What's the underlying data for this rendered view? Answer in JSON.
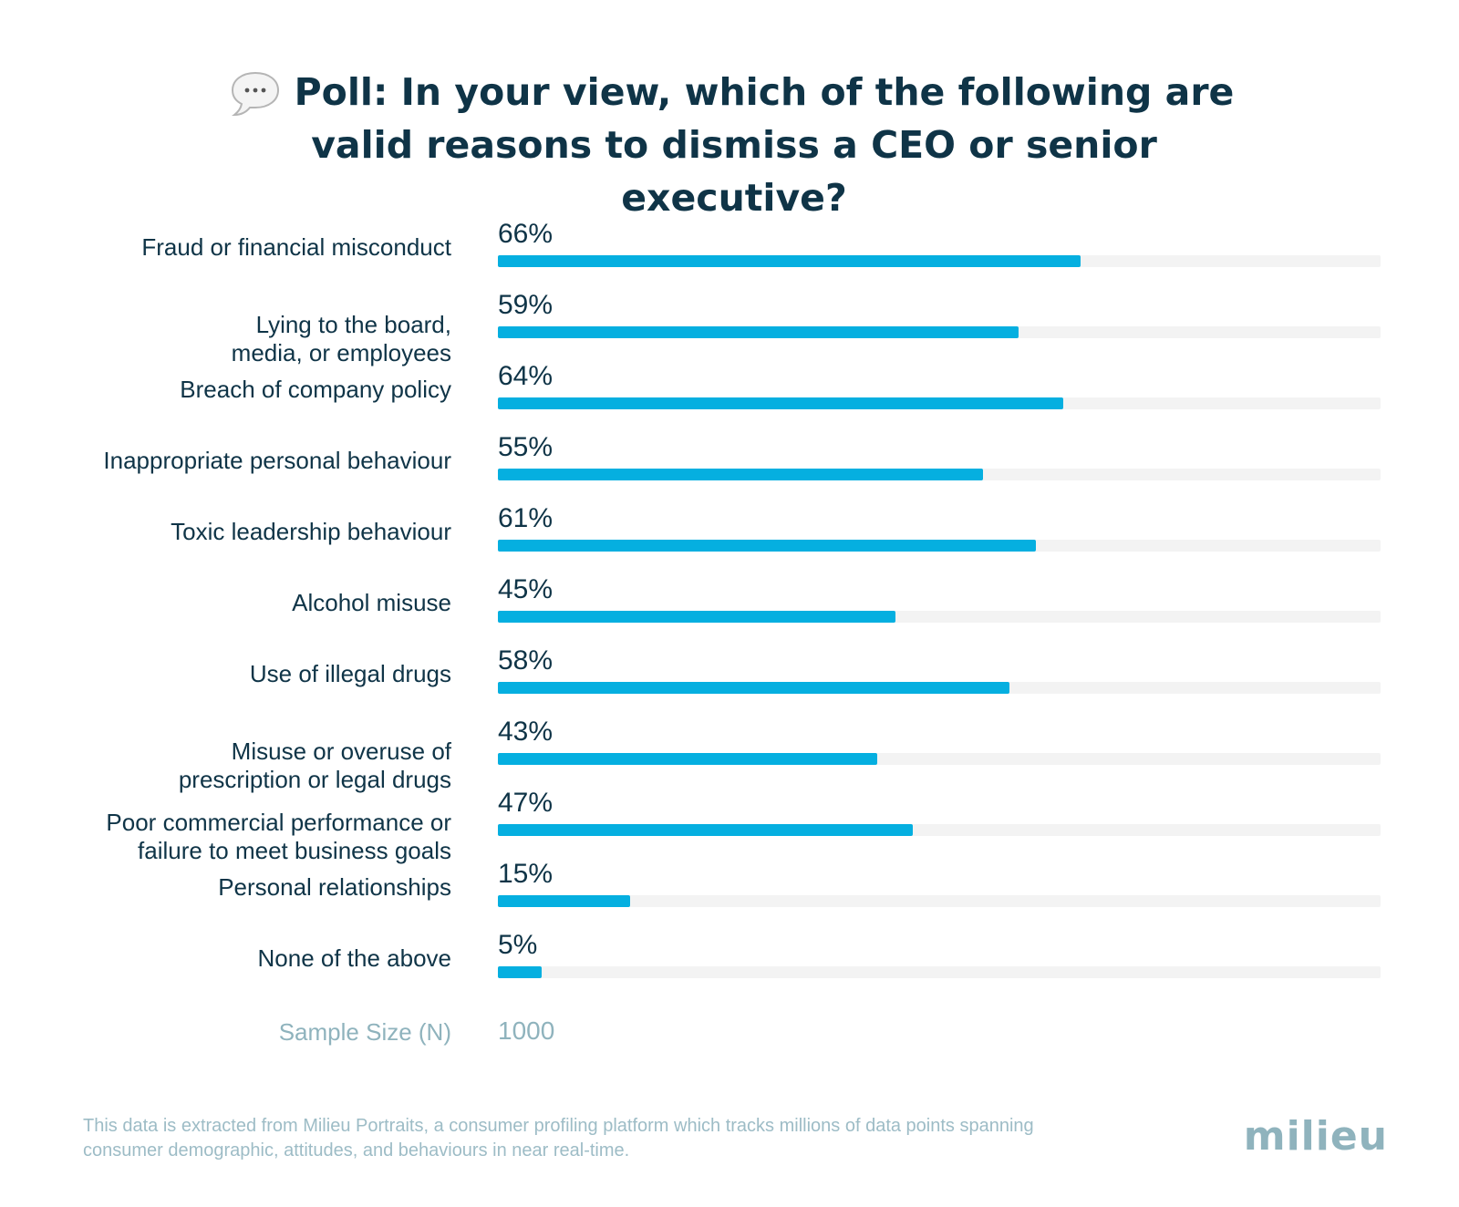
{
  "chart_data": {
    "type": "bar",
    "orientation": "horizontal",
    "title_icon": "speech-bubble-icon",
    "title": "Poll: In your view, which of the following are valid reasons to dismiss a CEO or senior executive?",
    "unit": "%",
    "xlim": [
      0,
      100
    ],
    "categories": [
      "Fraud or financial misconduct",
      "Lying to the board,\nmedia, or employees",
      "Breach of company policy",
      "Inappropriate personal behaviour",
      "Toxic leadership behaviour",
      "Alcohol misuse",
      "Use of illegal drugs",
      "Misuse or overuse of\nprescription or legal drugs",
      "Poor commercial performance or\nfailure to meet business goals",
      "Personal relationships",
      "None of the above"
    ],
    "values": [
      66,
      59,
      64,
      55,
      61,
      45,
      58,
      43,
      47,
      15,
      5
    ],
    "value_labels": [
      "66%",
      "59%",
      "64%",
      "55%",
      "61%",
      "45%",
      "58%",
      "43%",
      "47%",
      "15%",
      "5%"
    ],
    "sample_size_label": "Sample Size (N)",
    "sample_size": "1000",
    "colors": {
      "bar": "#05afe0",
      "track": "#f3f3f3",
      "text": "#0f3447",
      "muted": "#8fb3bd"
    }
  },
  "footer": {
    "note": "This data is extracted from Milieu Portraits, a consumer profiling platform which tracks millions of data points spanning consumer demographic, attitudes, and behaviours in near real-time.",
    "logo_text": "milieu"
  }
}
